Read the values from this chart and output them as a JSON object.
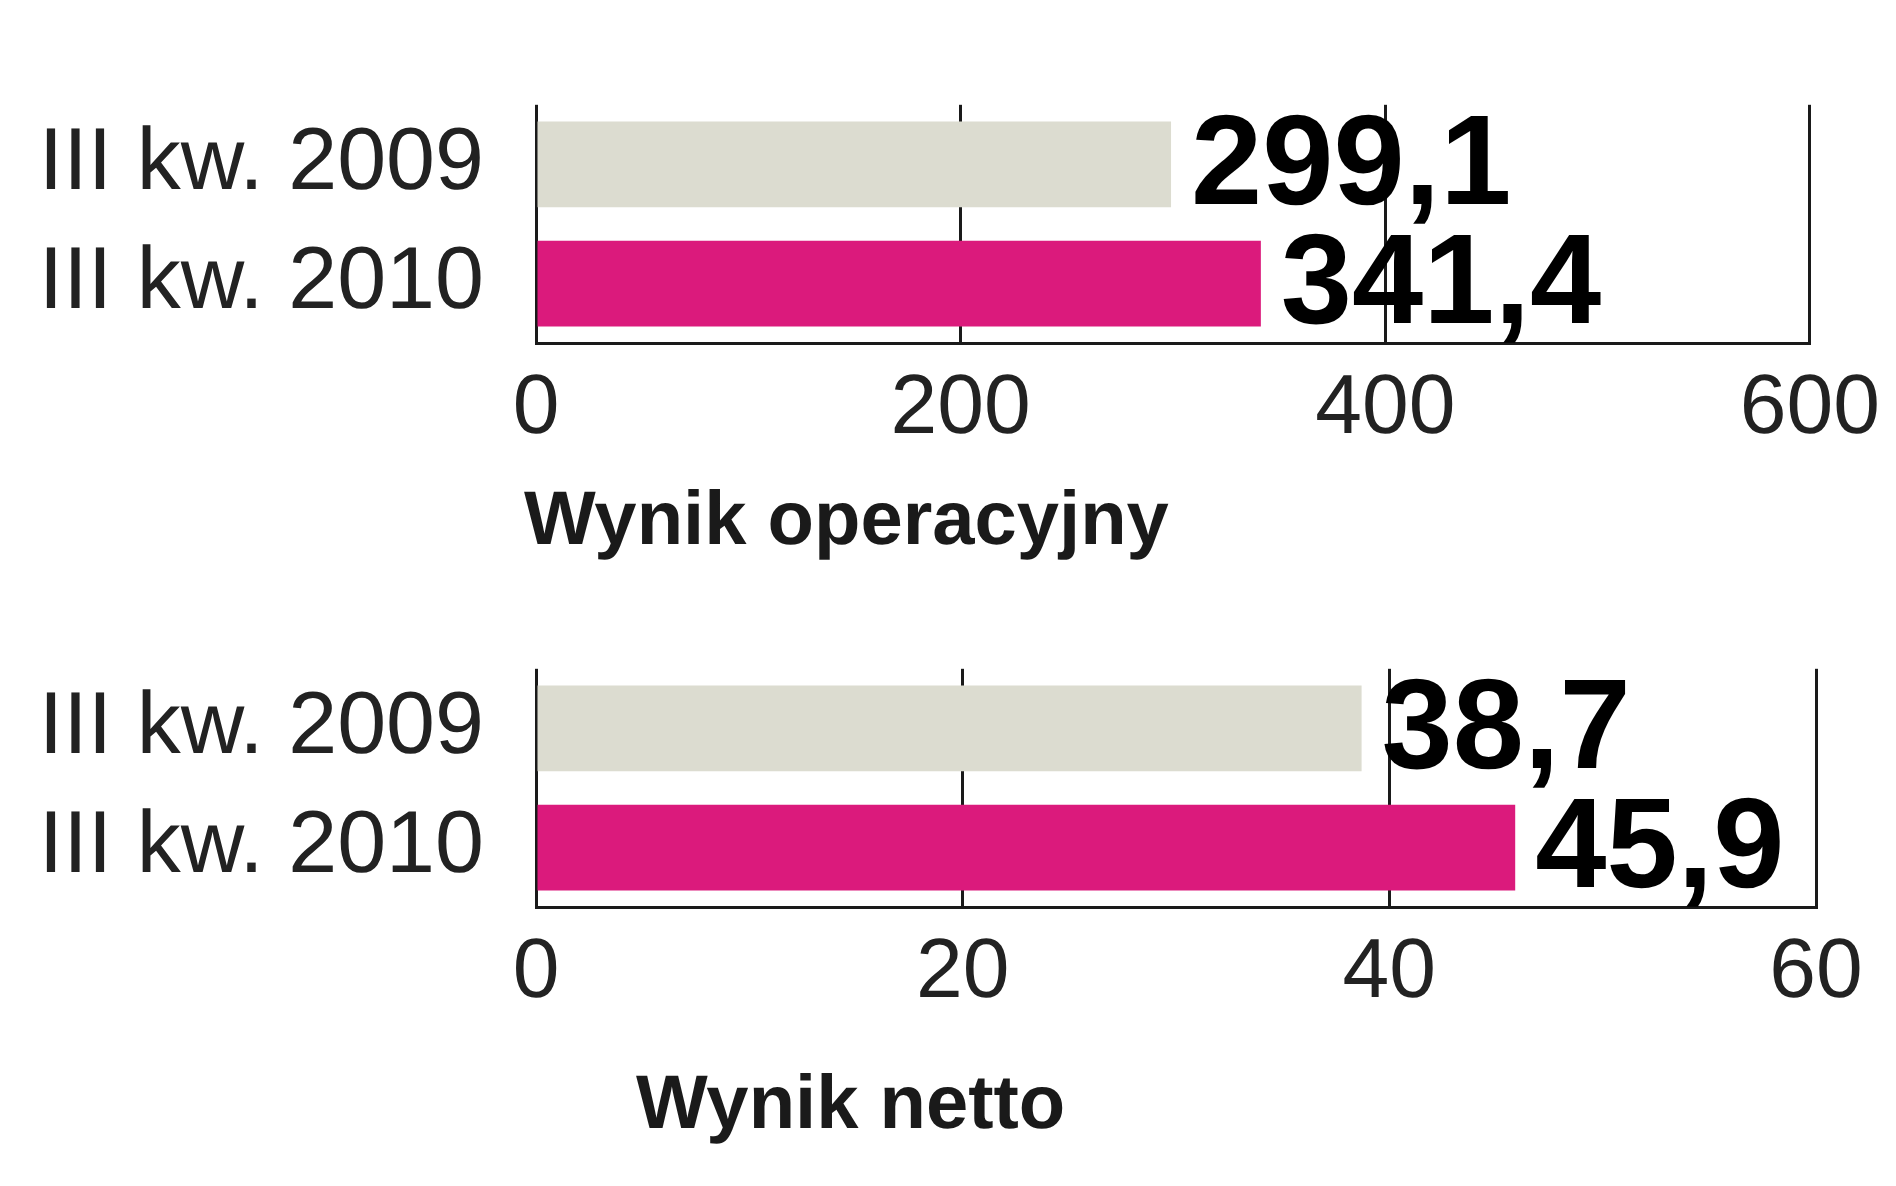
{
  "chart_data": [
    {
      "type": "bar",
      "orientation": "horizontal",
      "categories": [
        "III kw. 2009",
        "III kw. 2010"
      ],
      "values": [
        299.1,
        341.4
      ],
      "colors": [
        "#dcdcd0",
        "#db1a7c"
      ],
      "value_labels": [
        "299,1",
        "341,4"
      ],
      "xlim": [
        0,
        600
      ],
      "xticks": [
        0,
        200,
        400,
        600
      ],
      "grid": "x"
    },
    {
      "type": "bar",
      "orientation": "horizontal",
      "title": "Wynik operacyjny",
      "categories": [
        "III kw. 2009",
        "III kw. 2010"
      ],
      "values": [
        38.7,
        45.9
      ],
      "colors": [
        "#dcdcd0",
        "#db1a7c"
      ],
      "value_labels": [
        "38,7",
        "45,9"
      ],
      "xlim": [
        0,
        60
      ],
      "xticks": [
        0,
        20,
        40,
        60
      ],
      "grid": "x"
    },
    {
      "type": "other",
      "title": "Wynik netto"
    }
  ]
}
